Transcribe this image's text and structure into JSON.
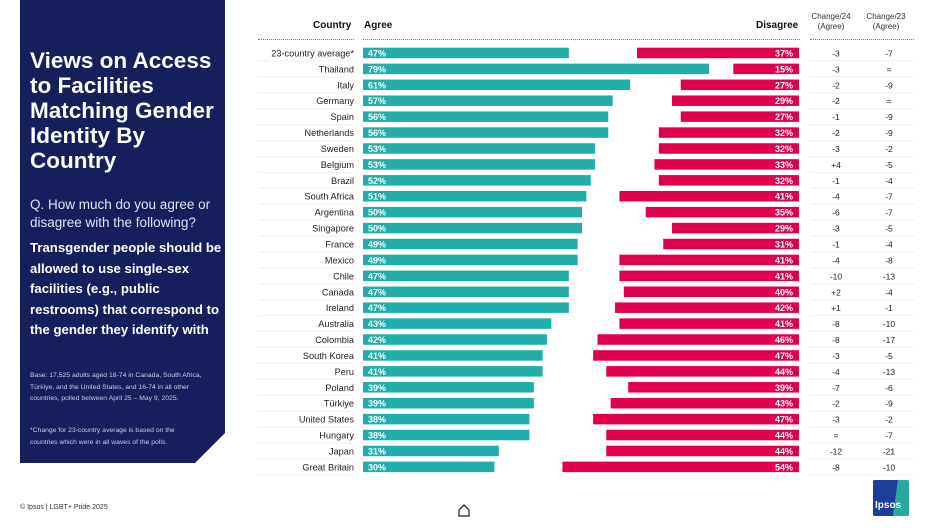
{
  "panel": {
    "title": "Views on Access to Facilities Matching Gender Identity By Country",
    "question": "Q. How much do you agree or disagree with the following?",
    "statement": "Transgender people should be allowed to use single-sex facilities (e.g., public restrooms) that correspond to the gender they identify with",
    "base_note": "Base: 17,525 adults aged 18-74 in Canada, South Africa, Türkiye, and the United States, and 16-74 in all other countries, polled between April 25 – May 9, 2025.",
    "average_note": "*Change for 23-country average is based on the countries which were in all waves of the polls."
  },
  "footer": {
    "copyright": "© Ipsos | LGBT+ Pride 2025",
    "logo_text": "Ipsos"
  },
  "colors": {
    "agree": "#21aeaa",
    "disagree": "#e0004d",
    "panel": "#141f5c"
  },
  "chart_data": {
    "type": "bar",
    "title": "Views on Access to Facilities Matching Gender Identity By Country",
    "headers": {
      "country": "Country",
      "agree": "Agree",
      "disagree": "Disagree",
      "change24": "Change/24 (Agree)",
      "change23": "Change/23 (Agree)"
    },
    "categories": [
      "23-country average*",
      "Thailand",
      "Italy",
      "Germany",
      "Spain",
      "Netherlands",
      "Sweden",
      "Belgium",
      "Brazil",
      "South Africa",
      "Argentina",
      "Singapore",
      "France",
      "Mexico",
      "Chile",
      "Canada",
      "Ireland",
      "Australia",
      "Colombia",
      "South Korea",
      "Peru",
      "Poland",
      "Türkiye",
      "United States",
      "Hungary",
      "Japan",
      "Great Britain"
    ],
    "series": [
      {
        "name": "Agree",
        "values": [
          47,
          79,
          61,
          57,
          56,
          56,
          53,
          53,
          52,
          51,
          50,
          50,
          49,
          49,
          47,
          47,
          47,
          43,
          42,
          41,
          41,
          39,
          39,
          38,
          38,
          31,
          30
        ]
      },
      {
        "name": "Disagree",
        "values": [
          37,
          15,
          27,
          29,
          27,
          32,
          32,
          33,
          32,
          41,
          35,
          29,
          31,
          41,
          41,
          40,
          42,
          41,
          46,
          47,
          44,
          39,
          43,
          47,
          44,
          44,
          54
        ]
      }
    ],
    "change24": [
      "-3",
      "-3",
      "-2",
      "-2",
      "-1",
      "-2",
      "-3",
      "+4",
      "-1",
      "-4",
      "-6",
      "-3",
      "-1",
      "-4",
      "-10",
      "+2",
      "+1",
      "-8",
      "-8",
      "-3",
      "-4",
      "-7",
      "-2",
      "-3",
      "=",
      "-12",
      "-8"
    ],
    "change23": [
      "-7",
      "=",
      "-9",
      "=",
      "-9",
      "-9",
      "-2",
      "-5",
      "-4",
      "-7",
      "-7",
      "-5",
      "-4",
      "-8",
      "-13",
      "-4",
      "-1",
      "-10",
      "-17",
      "-5",
      "-13",
      "-6",
      "-9",
      "-2",
      "-7",
      "-21",
      "-10"
    ],
    "value_format": "percent"
  }
}
